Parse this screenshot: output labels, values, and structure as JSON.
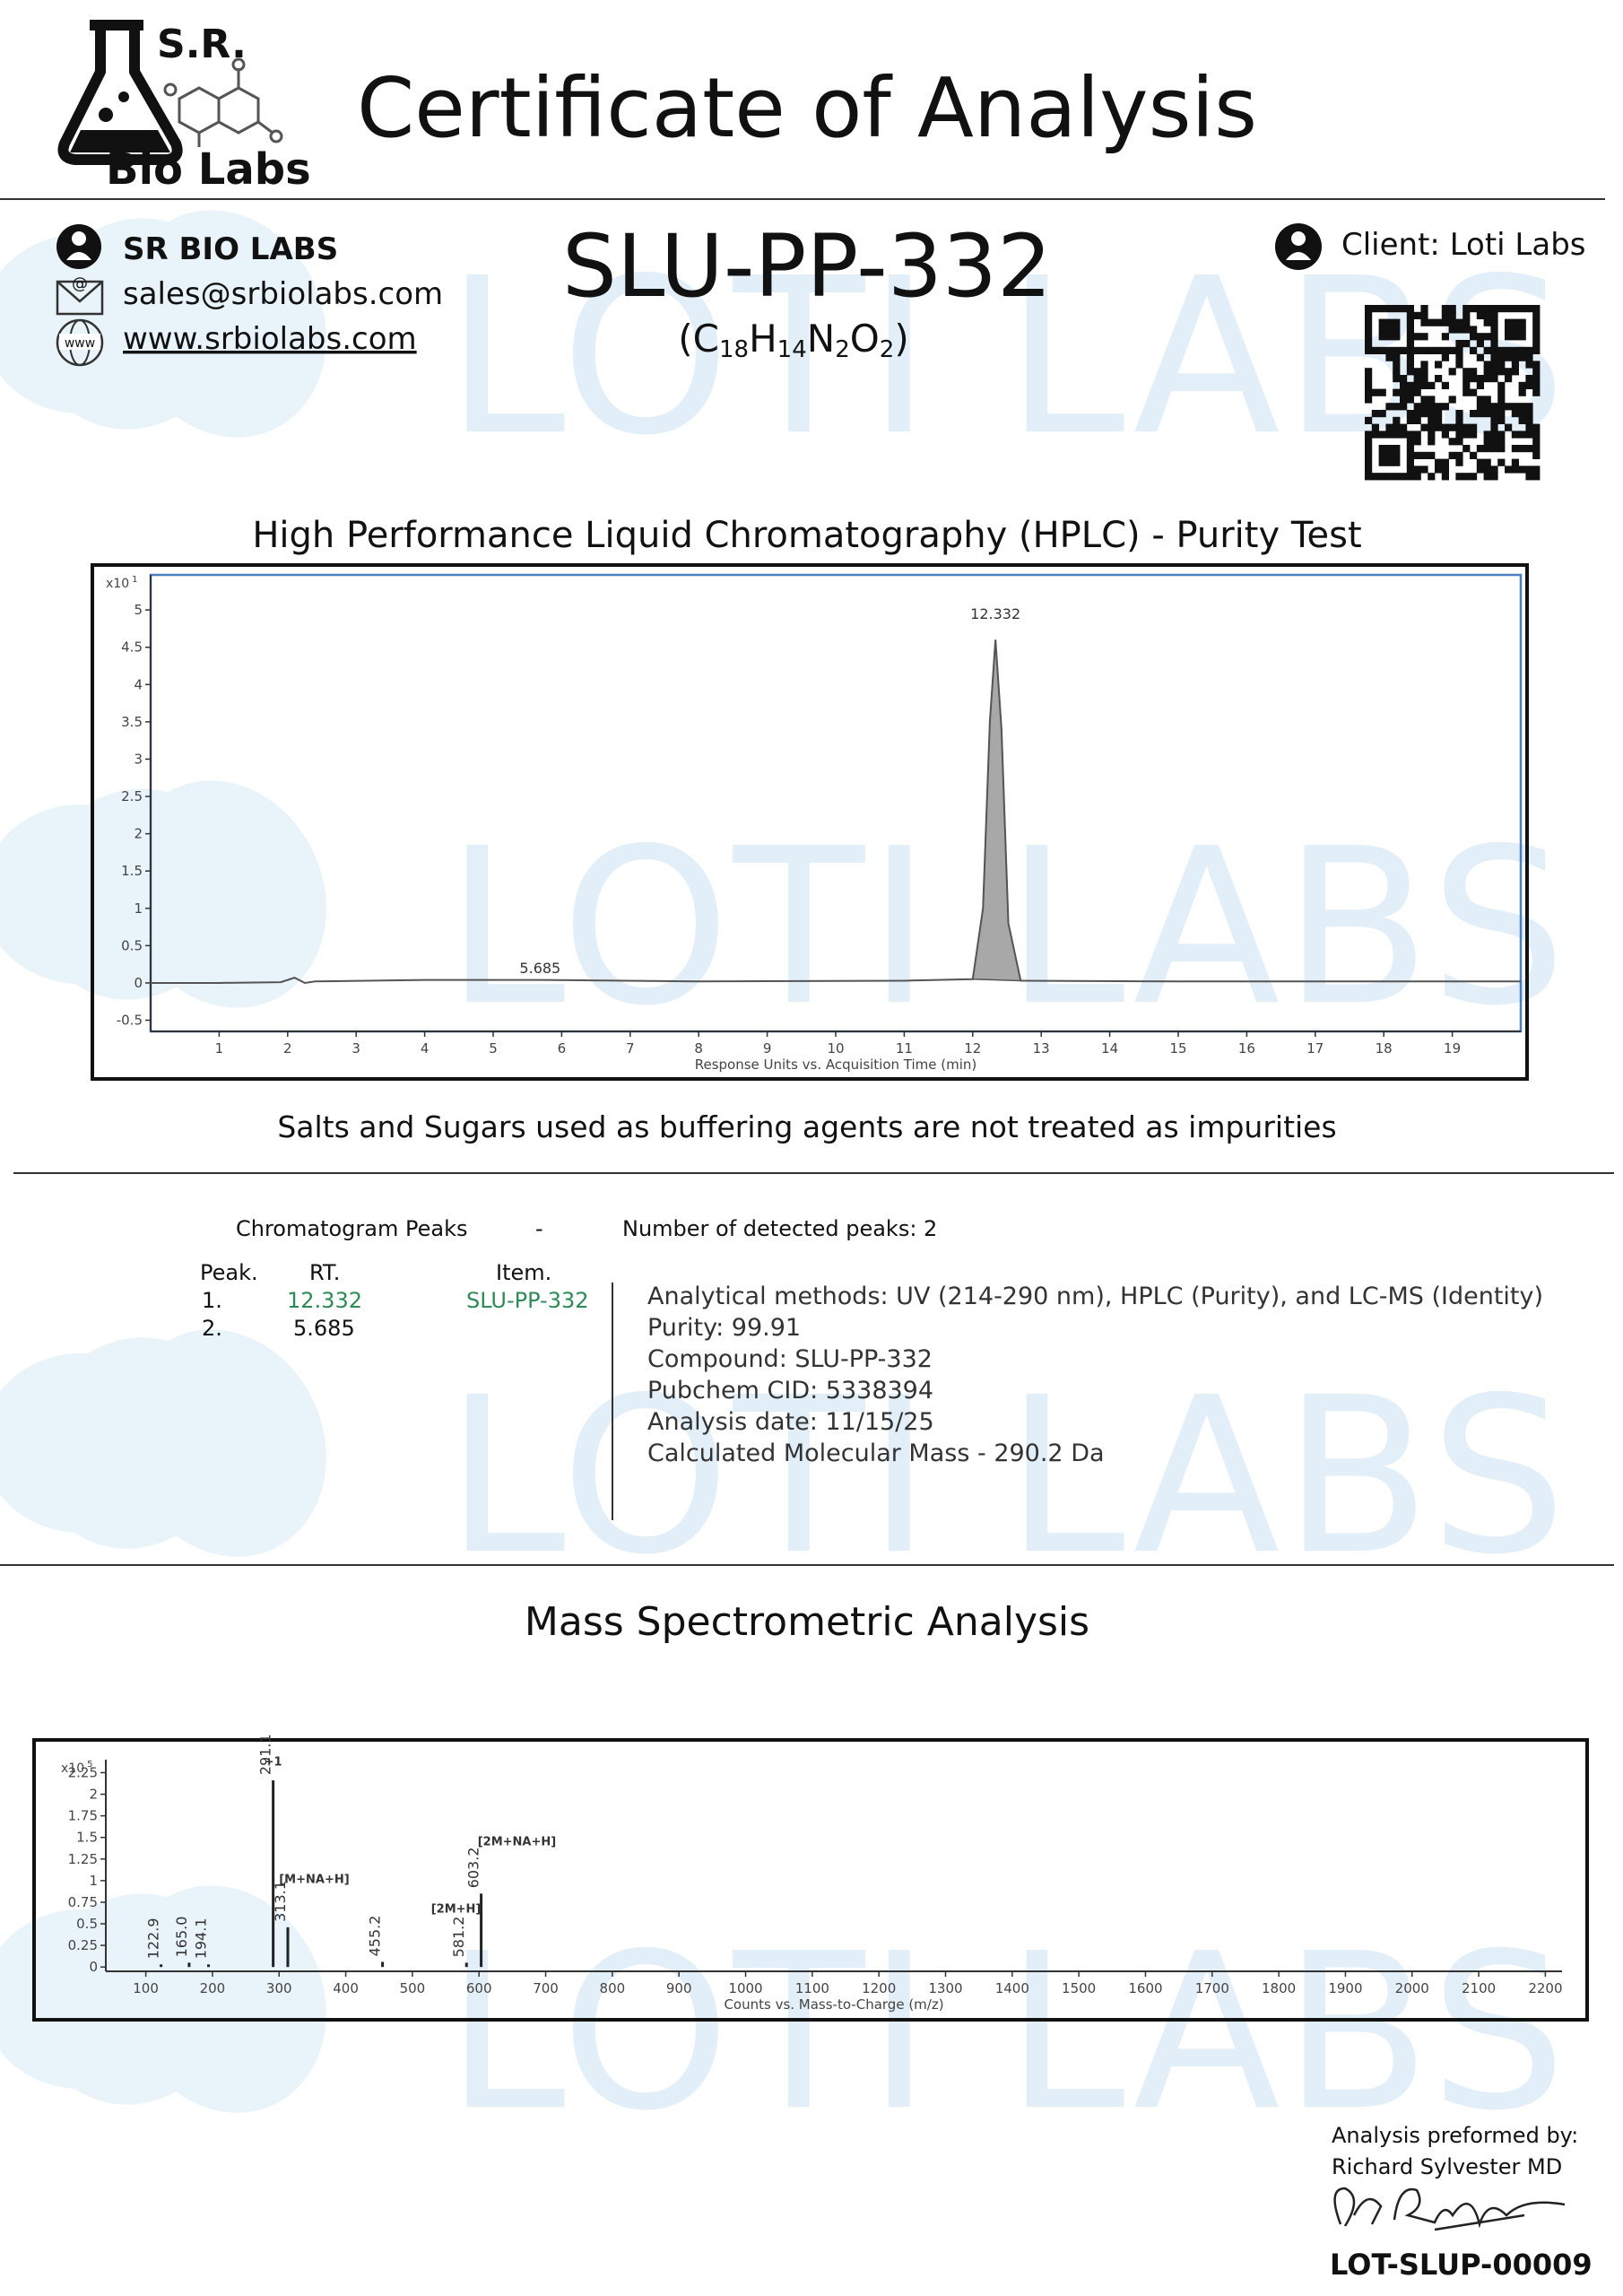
{
  "header": {
    "logo_line1": "S.R.",
    "logo_line2": "Bio Labs",
    "title": "Certificate of Analysis"
  },
  "company": {
    "name": "SR BIO LABS",
    "email": "sales@srbiolabs.com",
    "website": "www.srbiolabs.com"
  },
  "icons": {
    "email": "@",
    "web": "www"
  },
  "product": {
    "name": "SLU-PP-332",
    "formula": [
      "(C",
      "18",
      "H",
      "14",
      "N",
      "2",
      "O",
      "2",
      ")"
    ]
  },
  "client": "Client: Loti Labs",
  "watermark": "LOTI LABS",
  "hplc_title": "High Performance Liquid Chromatography (HPLC) - Purity Test",
  "note": "Salts and Sugars used as buffering agents are not treated as impurities",
  "peaks_table": {
    "title": "Chromatogram Peaks",
    "separator": "-",
    "count_text": "Number of detected peaks: 2",
    "headers": [
      "Peak.",
      "RT.",
      "Item."
    ],
    "rows": [
      [
        "1.",
        "12.332",
        "SLU-PP-332"
      ],
      [
        "2.",
        "5.685",
        ""
      ]
    ]
  },
  "info_lines": [
    "Analytical methods: UV (214-290 nm), HPLC (Purity), and LC-MS (Identity)",
    "Purity: 99.91",
    "Compound: SLU-PP-332",
    "Pubchem CID: 5338394",
    "Analysis date: 11/15/25",
    "Calculated Molecular Mass - 290.2  Da"
  ],
  "ms_title": "Mass Spectrometric Analysis",
  "signature": {
    "line1": "Analysis preformed by:",
    "line2": "Richard Sylvester MD",
    "lot": "LOT-SLUP-00009"
  },
  "chart_data": [
    {
      "type": "line",
      "x_label": "Response Units vs. Acquisition Time (min)",
      "y_multiplier": {
        "base": "x10",
        "exponent": "1"
      },
      "xlim": [
        0,
        20
      ],
      "ylim": [
        -0.65,
        5.47
      ],
      "xticks": [
        1,
        2,
        3,
        4,
        5,
        6,
        7,
        8,
        9,
        10,
        11,
        12,
        13,
        14,
        15,
        16,
        17,
        18,
        19
      ],
      "yticks": [
        -0.5,
        0,
        0.5,
        1,
        1.5,
        2,
        2.5,
        3,
        3.5,
        4,
        4.5,
        5
      ],
      "color": "#555555",
      "peak_fill": "#a8a8a8",
      "x": [
        0,
        1,
        1.9,
        2.1,
        2.25,
        2.4,
        4,
        5.685,
        8,
        11,
        12.0,
        12.15,
        12.25,
        12.332,
        12.42,
        12.52,
        12.7,
        15,
        18,
        20
      ],
      "values": [
        0,
        0,
        0.01,
        0.07,
        0.0,
        0.02,
        0.04,
        0.04,
        0.02,
        0.03,
        0.05,
        1.0,
        3.5,
        4.6,
        3.4,
        0.8,
        0.03,
        0.02,
        0.02,
        0.02
      ],
      "annotations": [
        {
          "text": "12.332",
          "x": 12.332,
          "y": 4.88
        },
        {
          "text": "5.685",
          "x": 5.685,
          "y": 0.13
        }
      ]
    },
    {
      "type": "bar",
      "x_label": "Counts vs. Mass-to-Charge (m/z)",
      "y_multiplier": {
        "base": "x10",
        "exponent": "5"
      },
      "xlim": [
        40,
        2225
      ],
      "ylim": [
        -0.05,
        2.4
      ],
      "xticks": [
        100,
        200,
        300,
        400,
        500,
        600,
        700,
        800,
        900,
        1000,
        1100,
        1200,
        1300,
        1400,
        1500,
        1600,
        1700,
        1800,
        1900,
        2000,
        2100,
        2200
      ],
      "yticks": [
        0,
        0.25,
        0.5,
        0.75,
        1,
        1.25,
        1.5,
        1.75,
        2,
        2.25
      ],
      "color": "#222222",
      "x": [
        122.9,
        165.0,
        194.1,
        291.1,
        313.1,
        455.2,
        581.2,
        603.2
      ],
      "x_labels": [
        "122.9",
        "165.0",
        "194.1",
        "291.1",
        "313.1",
        "455.2",
        "581.2",
        "603.2"
      ],
      "values": [
        0.03,
        0.05,
        0.03,
        2.16,
        0.46,
        0.06,
        0.05,
        0.85
      ],
      "annotations": [
        {
          "text": "+1",
          "x": 291.1,
          "y": 2.33
        },
        {
          "text": "[M+NA+H]",
          "x": 300,
          "y": 0.97
        },
        {
          "text": "[2M+H]",
          "x": 528,
          "y": 0.63
        },
        {
          "text": "[2M+NA+H]",
          "x": 598,
          "y": 1.41
        }
      ]
    }
  ]
}
